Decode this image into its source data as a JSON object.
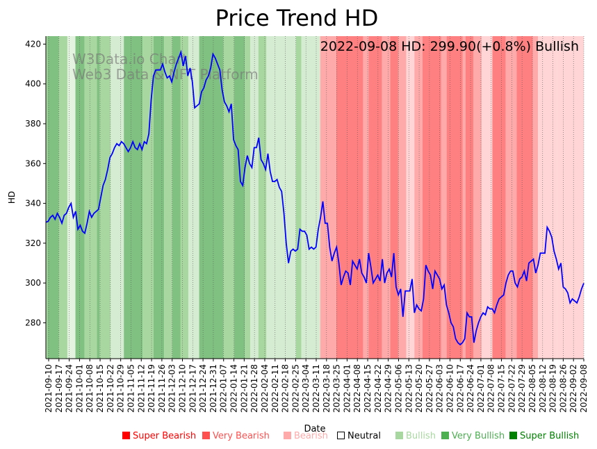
{
  "chart_data": {
    "type": "line",
    "title": "Price Trend HD",
    "xlabel": "Date",
    "ylabel": "HD",
    "ylim": [
      262,
      424
    ],
    "yticks": [
      280,
      300,
      320,
      340,
      360,
      380,
      400,
      420
    ],
    "annotation": "2022-09-08 HD: 299.90(+0.8%) Bullish",
    "watermark": [
      "W3Data.io Chart",
      "Web3 Data & NFT Platform"
    ],
    "grid": "vertical dotted lines at weekly ticks",
    "x_ticks": [
      "2021-09-10",
      "2021-09-17",
      "2021-09-24",
      "2021-10-01",
      "2021-10-08",
      "2021-10-15",
      "2021-10-22",
      "2021-10-29",
      "2021-11-05",
      "2021-11-12",
      "2021-11-19",
      "2021-11-26",
      "2021-12-03",
      "2021-12-10",
      "2021-12-17",
      "2021-12-24",
      "2021-12-31",
      "2022-01-07",
      "2022-01-14",
      "2022-01-21",
      "2022-01-28",
      "2022-02-04",
      "2022-02-11",
      "2022-02-18",
      "2022-02-25",
      "2022-03-04",
      "2022-03-11",
      "2022-03-18",
      "2022-03-25",
      "2022-04-01",
      "2022-04-08",
      "2022-04-15",
      "2022-04-22",
      "2022-04-29",
      "2022-05-06",
      "2022-05-13",
      "2022-05-20",
      "2022-05-27",
      "2022-06-03",
      "2022-06-10",
      "2022-06-17",
      "2022-06-24",
      "2022-07-01",
      "2022-07-08",
      "2022-07-15",
      "2022-07-22",
      "2022-07-29",
      "2022-08-05",
      "2022-08-12",
      "2022-08-19",
      "2022-08-26",
      "2022-09-02",
      "2022-09-08"
    ],
    "series": [
      {
        "name": "HD",
        "color": "#0000ff",
        "values": [
          330.5,
          331,
          333,
          334,
          332,
          335,
          333,
          330,
          334,
          335,
          338,
          340,
          333,
          336,
          327,
          329,
          326,
          325,
          330,
          336,
          333,
          335,
          336,
          337,
          343,
          349,
          352,
          357,
          363,
          365,
          368,
          370,
          369,
          371,
          370,
          368,
          366,
          368,
          371,
          368,
          367,
          370,
          367,
          371,
          370,
          375,
          392,
          404,
          407,
          407,
          407,
          410,
          406,
          403,
          404,
          401,
          406,
          410,
          413,
          416,
          409,
          414,
          404,
          408,
          401,
          388,
          389,
          390,
          396,
          398,
          402,
          404,
          408,
          415,
          413,
          410,
          407,
          397,
          391,
          389,
          386,
          390,
          372,
          369,
          367,
          351,
          349,
          358,
          364,
          360,
          358,
          368,
          368,
          373,
          362,
          360,
          357,
          365,
          356,
          351,
          351,
          352,
          348,
          346,
          335,
          320,
          310,
          316,
          317,
          316,
          317,
          327,
          326,
          326,
          324,
          317,
          318,
          317,
          318,
          327,
          333,
          341,
          330,
          330,
          318,
          311,
          315,
          318,
          310,
          299,
          303,
          306,
          305,
          299,
          311,
          309,
          307,
          312,
          305,
          303,
          300,
          315,
          308,
          300,
          302,
          304,
          301,
          312,
          300,
          305,
          307,
          303,
          315,
          298,
          294,
          297,
          283,
          296,
          296,
          296,
          302,
          285,
          289,
          287,
          286,
          292,
          309,
          306,
          304,
          297,
          306,
          304,
          302,
          297,
          299,
          289,
          285,
          280,
          278,
          272,
          270,
          269,
          270,
          272,
          285,
          283,
          283,
          270,
          276,
          280,
          283,
          285,
          284,
          288,
          287,
          287,
          285,
          289,
          292,
          293,
          294,
          300,
          304,
          306,
          306,
          300,
          298,
          302,
          303,
          306,
          301,
          310,
          311,
          312,
          305,
          309,
          315,
          315,
          315,
          328,
          326,
          323,
          316,
          312,
          307,
          310,
          298,
          297,
          295,
          290,
          292,
          291,
          290,
          293,
          297,
          299.9
        ]
      }
    ],
    "sentiment_bands": [
      {
        "start": 0,
        "end": 0.003,
        "level": "Bullish"
      },
      {
        "start": 0.003,
        "end": 0.024,
        "level": "Very Bullish"
      },
      {
        "start": 0.024,
        "end": 0.04,
        "level": "Bullish"
      },
      {
        "start": 0.04,
        "end": 0.055,
        "level": "Neutral-Bullish"
      },
      {
        "start": 0.055,
        "end": 0.072,
        "level": "Very Bullish"
      },
      {
        "start": 0.072,
        "end": 0.095,
        "level": "Bullish"
      },
      {
        "start": 0.095,
        "end": 0.1,
        "level": "Very Bullish"
      },
      {
        "start": 0.1,
        "end": 0.12,
        "level": "Bullish"
      },
      {
        "start": 0.12,
        "end": 0.145,
        "level": "Light Bullish"
      },
      {
        "start": 0.145,
        "end": 0.18,
        "level": "Very Bullish"
      },
      {
        "start": 0.18,
        "end": 0.2,
        "level": "Bullish"
      },
      {
        "start": 0.2,
        "end": 0.22,
        "level": "Very Bullish"
      },
      {
        "start": 0.22,
        "end": 0.235,
        "level": "Bullish"
      },
      {
        "start": 0.235,
        "end": 0.25,
        "level": "Very Bullish"
      },
      {
        "start": 0.25,
        "end": 0.265,
        "level": "Bullish"
      },
      {
        "start": 0.265,
        "end": 0.285,
        "level": "Light Bullish"
      },
      {
        "start": 0.285,
        "end": 0.33,
        "level": "Very Bullish"
      },
      {
        "start": 0.33,
        "end": 0.35,
        "level": "Bullish"
      },
      {
        "start": 0.35,
        "end": 0.37,
        "level": "Very Bullish"
      },
      {
        "start": 0.37,
        "end": 0.38,
        "level": "Bullish"
      },
      {
        "start": 0.38,
        "end": 0.395,
        "level": "Light Bullish"
      },
      {
        "start": 0.395,
        "end": 0.41,
        "level": "Bullish"
      },
      {
        "start": 0.41,
        "end": 0.465,
        "level": "Light Bullish"
      },
      {
        "start": 0.465,
        "end": 0.475,
        "level": "Bullish"
      },
      {
        "start": 0.475,
        "end": 0.51,
        "level": "Light Bullish"
      },
      {
        "start": 0.51,
        "end": 0.54,
        "level": "Bearish"
      },
      {
        "start": 0.54,
        "end": 0.59,
        "level": "Very Bearish"
      },
      {
        "start": 0.59,
        "end": 0.6,
        "level": "Bearish"
      },
      {
        "start": 0.6,
        "end": 0.625,
        "level": "Very Bearish"
      },
      {
        "start": 0.625,
        "end": 0.64,
        "level": "Bearish"
      },
      {
        "start": 0.64,
        "end": 0.655,
        "level": "Very Bearish"
      },
      {
        "start": 0.655,
        "end": 0.67,
        "level": "Bearish"
      },
      {
        "start": 0.67,
        "end": 0.685,
        "level": "Light Bearish"
      },
      {
        "start": 0.685,
        "end": 0.7,
        "level": "Bearish"
      },
      {
        "start": 0.7,
        "end": 0.735,
        "level": "Very Bearish"
      },
      {
        "start": 0.735,
        "end": 0.745,
        "level": "Bearish"
      },
      {
        "start": 0.745,
        "end": 0.775,
        "level": "Very Bearish"
      },
      {
        "start": 0.775,
        "end": 0.78,
        "level": "Bearish"
      },
      {
        "start": 0.78,
        "end": 0.795,
        "level": "Very Bearish"
      },
      {
        "start": 0.795,
        "end": 0.81,
        "level": "Bearish"
      },
      {
        "start": 0.81,
        "end": 0.83,
        "level": "Light Bearish"
      },
      {
        "start": 0.83,
        "end": 0.855,
        "level": "Very Bearish"
      },
      {
        "start": 0.855,
        "end": 0.875,
        "level": "Bearish"
      },
      {
        "start": 0.875,
        "end": 0.905,
        "level": "Very Bearish"
      },
      {
        "start": 0.905,
        "end": 0.915,
        "level": "Bearish"
      },
      {
        "start": 0.915,
        "end": 0.95,
        "level": "Light Bearish"
      },
      {
        "start": 0.95,
        "end": 1.0,
        "level": "Light Bearish"
      }
    ]
  },
  "legend": [
    {
      "label": "Super Bearish",
      "color": "#ff0000",
      "symbol": "■"
    },
    {
      "label": "Very Bearish",
      "color": "#ff5050",
      "symbol": "■"
    },
    {
      "label": "Bearish",
      "color": "#ffaaaa",
      "symbol": "■"
    },
    {
      "label": "Neutral",
      "color": "#000000",
      "symbol": "□"
    },
    {
      "label": "Bullish",
      "color": "#a8d8a0",
      "symbol": "■"
    },
    {
      "label": "Very Bullish",
      "color": "#4caf50",
      "symbol": "■"
    },
    {
      "label": "Super Bullish",
      "color": "#008000",
      "symbol": "■"
    }
  ]
}
